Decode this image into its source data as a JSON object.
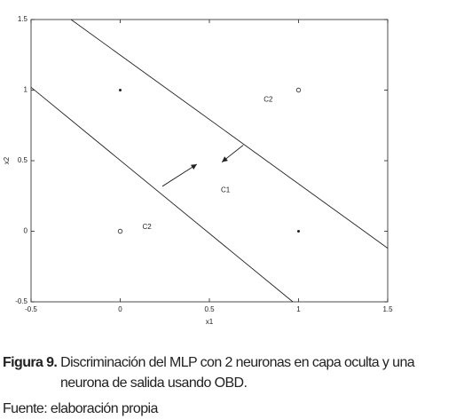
{
  "chart_data": {
    "type": "scatter",
    "xlabel": "x1",
    "ylabel": "x2",
    "xlim": [
      -0.5,
      1.5
    ],
    "ylim": [
      -0.5,
      1.5
    ],
    "xticks": [
      -0.5,
      0,
      0.5,
      1,
      1.5
    ],
    "yticks": [
      -0.5,
      0,
      0.5,
      1,
      1.5
    ],
    "points": {
      "x": [
        0,
        1,
        0,
        1
      ],
      "y": [
        1,
        1,
        0,
        0
      ],
      "markers": [
        "dot",
        "circle",
        "circle",
        "dot"
      ]
    },
    "lines": [
      {
        "x": [
          -0.276,
          1.5
        ],
        "y": [
          1.5,
          -0.12
        ]
      },
      {
        "x": [
          -0.5,
          0.968
        ],
        "y": [
          1.02,
          -0.5
        ]
      }
    ],
    "arrows": [
      {
        "x": [
          0.236,
          0.43
        ],
        "y": [
          0.318,
          0.475
        ]
      },
      {
        "x": [
          0.69,
          0.57
        ],
        "y": [
          0.61,
          0.49
        ]
      }
    ],
    "annotations": [
      {
        "text": "C2",
        "x": 0.83,
        "y": 0.93
      },
      {
        "text": "C1",
        "x": 0.59,
        "y": 0.29
      },
      {
        "text": "C2",
        "x": 0.15,
        "y": 0.03
      }
    ],
    "color": "#222"
  },
  "caption": {
    "label": "Figura 9.",
    "text": "Discriminación del MLP con 2 neuronas en capa oculta y una neurona de salida usando OBD."
  },
  "source": "Fuente: elaboración propia"
}
